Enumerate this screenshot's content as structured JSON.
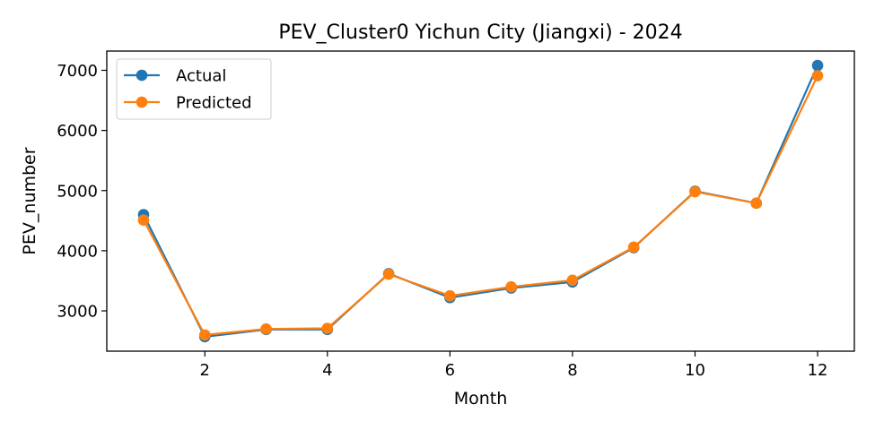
{
  "chart_data": {
    "type": "line",
    "title": "PEV_Cluster0 Yichun City (Jiangxi) - 2024",
    "xlabel": "Month",
    "ylabel": "PEV_number",
    "xlim": [
      0.4,
      12.6
    ],
    "ylim": [
      2330,
      7320
    ],
    "xticks": [
      2,
      4,
      6,
      8,
      10,
      12
    ],
    "yticks": [
      3000,
      4000,
      5000,
      6000,
      7000
    ],
    "grid": false,
    "legend_position": "upper left",
    "x": [
      1,
      2,
      3,
      4,
      5,
      6,
      7,
      8,
      9,
      10,
      11,
      12
    ],
    "series": [
      {
        "name": "Actual",
        "color": "#1f77b4",
        "marker": "circle",
        "values": [
          4600,
          2570,
          2690,
          2690,
          3620,
          3220,
          3380,
          3480,
          4050,
          4990,
          4790,
          7080
        ]
      },
      {
        "name": "Predicted",
        "color": "#ff7f0e",
        "marker": "circle",
        "values": [
          4510,
          2600,
          2700,
          2710,
          3610,
          3250,
          3400,
          3510,
          4060,
          4980,
          4790,
          6910
        ]
      }
    ]
  }
}
